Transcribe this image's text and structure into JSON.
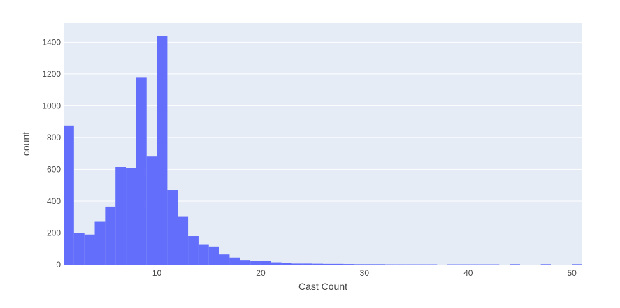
{
  "chart_data": {
    "type": "bar",
    "xlabel": "Cast Count",
    "ylabel": "count",
    "xlim": [
      1,
      51
    ],
    "ylim": [
      0,
      1520
    ],
    "bin_width": 1,
    "x_ticks": [
      10,
      20,
      30,
      40,
      50
    ],
    "y_ticks": [
      0,
      200,
      400,
      600,
      800,
      1000,
      1200,
      1400
    ],
    "grid": true,
    "bins_start": [
      1,
      2,
      3,
      4,
      5,
      6,
      7,
      8,
      9,
      10,
      11,
      12,
      13,
      14,
      15,
      16,
      17,
      18,
      19,
      20,
      21,
      22,
      23,
      24,
      25,
      26,
      27,
      28,
      29,
      30,
      31,
      32,
      33,
      34,
      35,
      36,
      37,
      38,
      39,
      40,
      41,
      42,
      43,
      44,
      45,
      46,
      47,
      48,
      49,
      50
    ],
    "values": [
      875,
      200,
      190,
      270,
      365,
      615,
      610,
      1180,
      680,
      1440,
      470,
      305,
      180,
      125,
      115,
      65,
      45,
      30,
      25,
      25,
      15,
      10,
      7,
      7,
      6,
      5,
      5,
      4,
      3,
      3,
      3,
      2,
      2,
      2,
      2,
      2,
      0,
      2,
      2,
      2,
      2,
      2,
      0,
      3,
      0,
      0,
      3,
      0,
      0,
      3
    ],
    "colors": {
      "bar": "#636efa",
      "plot_bg": "#e5ecf6",
      "grid": "#ffffff"
    }
  }
}
